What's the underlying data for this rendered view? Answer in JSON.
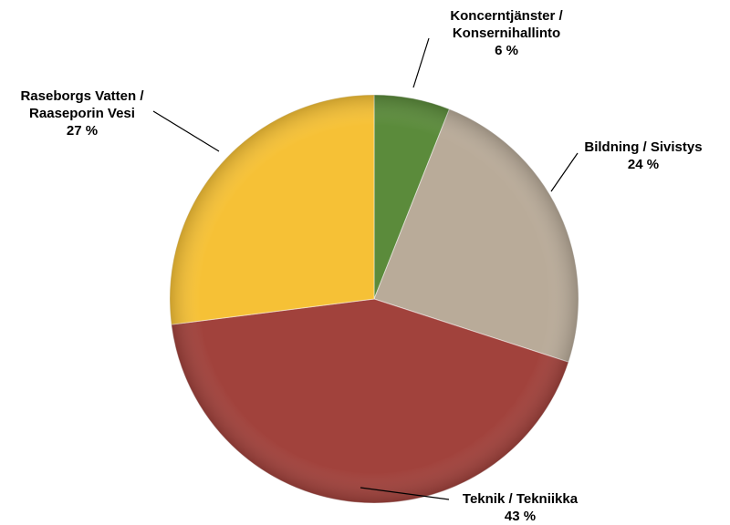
{
  "chart_data": {
    "type": "pie",
    "categories": [
      "Koncerntjänster / Konsernihallinto",
      "Bildning / Sivistys",
      "Teknik / Tekniikka",
      "Raseborgs Vatten / Raaseporin Vesi"
    ],
    "values": [
      6,
      24,
      43,
      27
    ],
    "value_labels": [
      "6 %",
      "24 %",
      "43 %",
      "27 %"
    ],
    "colors": [
      "#5b8b3b",
      "#b9ab99",
      "#a1423c",
      "#f6c136"
    ]
  }
}
